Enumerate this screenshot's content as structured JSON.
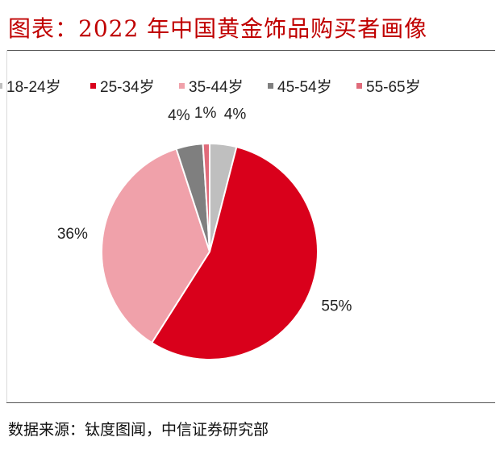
{
  "header": {
    "title": "图表：2022 年中国黄金饰品购买者画像"
  },
  "footer": {
    "source": "数据来源：钛度图闻，中信证券研究部"
  },
  "chart_data": {
    "type": "pie",
    "title": "图表：2022 年中国黄金饰品购买者画像",
    "categories": [
      "18-24岁",
      "25-34岁",
      "35-44岁",
      "45-54岁",
      "55-65岁"
    ],
    "values": [
      4,
      55,
      36,
      4,
      1
    ],
    "data_labels": [
      "4%",
      "55%",
      "36%",
      "4%",
      "1%"
    ],
    "colors": [
      "#bfbfbf",
      "#d9001b",
      "#f0a1aa",
      "#7f7f7f",
      "#e06b7a"
    ],
    "legend_position": "top",
    "start": "12 o'clock",
    "direction": "clockwise"
  }
}
